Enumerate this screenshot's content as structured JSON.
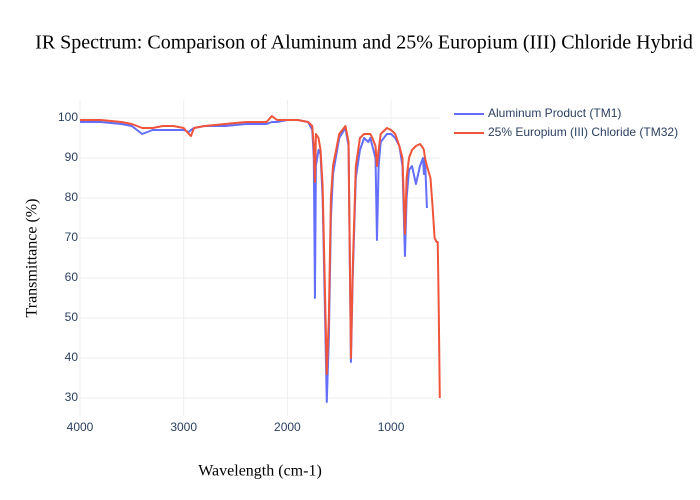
{
  "chart_data": {
    "type": "line",
    "title": "IR Spectrum: Comparison of Aluminum and 25% Europium (III) Chloride Hybrid",
    "x_label": "Wavelength (cm-1)",
    "y_label": "Transmittance (%)",
    "x": [
      4000,
      3800,
      3600,
      3500,
      3450,
      3400,
      3350,
      3300,
      3200,
      3100,
      3000,
      2950,
      2930,
      2900,
      2800,
      2600,
      2400,
      2200,
      2150,
      2100,
      2000,
      1900,
      1800,
      1760,
      1745,
      1734,
      1725,
      1700,
      1680,
      1660,
      1640,
      1620,
      1600,
      1580,
      1560,
      1500,
      1440,
      1410,
      1387,
      1370,
      1340,
      1300,
      1260,
      1220,
      1200,
      1180,
      1150,
      1136,
      1120,
      1100,
      1040,
      1000,
      960,
      920,
      890,
      866,
      850,
      827,
      798,
      760,
      721,
      692,
      683,
      673,
      654,
      620,
      600,
      580,
      560,
      550,
      540,
      530
    ],
    "series": [
      {
        "name": "Aluminum Product (TM1)",
        "color": "#636efa",
        "values": [
          99,
          99,
          98.5,
          98,
          97,
          96,
          96.5,
          97,
          97,
          97,
          97,
          96.5,
          97,
          97.5,
          98,
          98,
          98.5,
          98.5,
          99,
          99,
          99.5,
          99.5,
          99,
          97,
          90,
          55,
          88,
          92,
          91,
          80,
          55,
          29,
          45,
          75,
          86,
          95,
          97.5,
          93,
          39,
          60,
          85,
          92,
          95,
          94,
          95,
          93,
          90,
          69.5,
          88,
          94,
          96,
          96,
          95,
          93,
          88,
          65.5,
          80,
          87,
          88,
          83.5,
          88,
          90,
          86,
          90,
          77.5,
          null,
          null,
          null,
          null,
          null,
          null,
          null
        ]
      },
      {
        "name": "25% Europium (III) Chloride (TM32)",
        "color": "#ef553b",
        "values": [
          99.5,
          99.5,
          99,
          98.5,
          98,
          97.5,
          97.5,
          97.5,
          98,
          98,
          97.5,
          96,
          95.5,
          97.5,
          98,
          98.5,
          99,
          99,
          100.5,
          99.5,
          99.5,
          99.5,
          99,
          98,
          93,
          84,
          96,
          95,
          92,
          83,
          60,
          36,
          50,
          80,
          88,
          96,
          98,
          94,
          40,
          62,
          88,
          95,
          96,
          96,
          96,
          95,
          93,
          88,
          92,
          96,
          97.5,
          97,
          96,
          93,
          90,
          71,
          85,
          90,
          92,
          93,
          93.5,
          92.5,
          92,
          90,
          88,
          85,
          78,
          70,
          69,
          69,
          52,
          30
        ]
      }
    ],
    "xlim": [
      4000,
      528
    ],
    "ylim": [
      25.5,
      104.5
    ],
    "xticks": [
      4000,
      3000,
      2000,
      1000
    ],
    "yticks": [
      30,
      40,
      50,
      60,
      70,
      80,
      90,
      100
    ],
    "grid": true,
    "legend": "top-right"
  }
}
